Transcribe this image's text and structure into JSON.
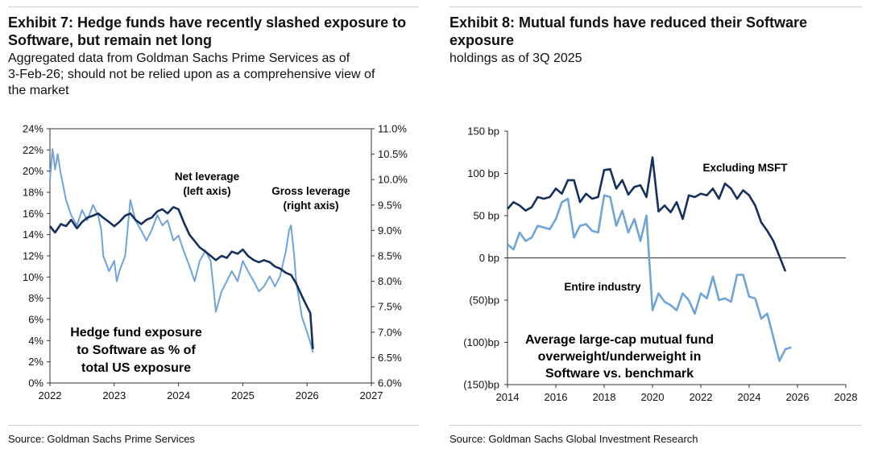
{
  "left": {
    "title_line1": "Exhibit 7: Hedge funds have recently slashed exposure to",
    "title_line2": "Software, but remain net long",
    "subtitle_line1": "Aggregated data from Goldman Sachs Prime Services as of",
    "subtitle_line2": "3-Feb-26; should not be relied upon as a comprehensive view of",
    "subtitle_line3": "the market",
    "source": "Source: Goldman Sachs Prime Services"
  },
  "right": {
    "title_line1": "Exhibit 8: Mutual funds have reduced their Software",
    "title_line2": "exposure",
    "subtitle": "holdings as of 3Q 2025",
    "source": "Source: Goldman Sachs Global Investment Research"
  },
  "colors": {
    "dark": "#14305c",
    "light": "#6fa4d8"
  },
  "chart_data": [
    {
      "type": "line",
      "title": "Hedge fund exposure to Software as % of total US exposure",
      "text_lines": [
        "Hedge fund exposure",
        "to Software as % of",
        "total US exposure"
      ],
      "xlim": [
        2022,
        2027
      ],
      "x_ticks": [
        2022,
        2023,
        2024,
        2025,
        2026,
        2027
      ],
      "x_tick_labels": [
        "2022",
        "2023",
        "2024",
        "2025",
        "2026",
        "2027"
      ],
      "left_axis": {
        "ylim": [
          0,
          24
        ],
        "ticks": [
          0,
          2,
          4,
          6,
          8,
          10,
          12,
          14,
          16,
          18,
          20,
          22,
          24
        ],
        "tick_labels": [
          "0%",
          "2%",
          "4%",
          "6%",
          "8%",
          "10%",
          "12%",
          "14%",
          "16%",
          "18%",
          "20%",
          "22%",
          "24%"
        ]
      },
      "right_axis": {
        "ylim": [
          6.0,
          11.0
        ],
        "ticks": [
          6.0,
          6.5,
          7.0,
          7.5,
          8.0,
          8.5,
          9.0,
          9.5,
          10.0,
          10.5,
          11.0
        ],
        "tick_labels": [
          "6.0%",
          "6.5%",
          "7.0%",
          "7.5%",
          "8.0%",
          "8.5%",
          "9.0%",
          "9.5%",
          "10.0%",
          "10.5%",
          "11.0%"
        ]
      },
      "series": [
        {
          "name": "Net leverage",
          "label_lines": [
            "Net leverage",
            "(left axis)"
          ],
          "axis": "left",
          "color": "#14305c",
          "x": [
            2022.0,
            2022.08,
            2022.17,
            2022.25,
            2022.33,
            2022.42,
            2022.5,
            2022.58,
            2022.67,
            2022.75,
            2022.83,
            2022.92,
            2023.0,
            2023.08,
            2023.17,
            2023.25,
            2023.33,
            2023.42,
            2023.5,
            2023.58,
            2023.67,
            2023.75,
            2023.83,
            2023.92,
            2024.0,
            2024.08,
            2024.17,
            2024.25,
            2024.33,
            2024.42,
            2024.5,
            2024.58,
            2024.67,
            2024.75,
            2024.83,
            2024.92,
            2025.0,
            2025.08,
            2025.17,
            2025.25,
            2025.33,
            2025.42,
            2025.5,
            2025.58,
            2025.67,
            2025.75,
            2025.83,
            2025.92,
            2026.0,
            2026.05,
            2026.09
          ],
          "values": [
            14.8,
            14.2,
            15.0,
            14.8,
            15.4,
            14.6,
            15.2,
            15.6,
            15.8,
            16.0,
            15.6,
            15.2,
            14.8,
            15.2,
            15.8,
            16.0,
            15.4,
            15.0,
            15.4,
            15.6,
            16.2,
            16.4,
            16.0,
            16.6,
            16.4,
            15.2,
            14.0,
            13.4,
            12.8,
            12.4,
            12.0,
            11.6,
            12.0,
            11.8,
            12.4,
            12.2,
            12.6,
            12.0,
            11.6,
            11.4,
            11.6,
            11.4,
            11.0,
            10.8,
            10.4,
            10.2,
            9.4,
            8.2,
            7.2,
            6.6,
            3.2
          ]
        },
        {
          "name": "Gross leverage",
          "label_lines": [
            "Gross leverage",
            "(right axis)"
          ],
          "axis": "right",
          "color": "#6fa4d8",
          "x": [
            2022.0,
            2022.04,
            2022.08,
            2022.12,
            2022.17,
            2022.25,
            2022.33,
            2022.42,
            2022.5,
            2022.58,
            2022.67,
            2022.75,
            2022.8,
            2022.83,
            2022.92,
            2023.0,
            2023.04,
            2023.08,
            2023.17,
            2023.25,
            2023.33,
            2023.42,
            2023.5,
            2023.58,
            2023.67,
            2023.75,
            2023.83,
            2023.92,
            2024.0,
            2024.08,
            2024.17,
            2024.25,
            2024.33,
            2024.42,
            2024.5,
            2024.55,
            2024.58,
            2024.67,
            2024.75,
            2024.83,
            2024.92,
            2025.0,
            2025.08,
            2025.17,
            2025.25,
            2025.33,
            2025.42,
            2025.5,
            2025.58,
            2025.67,
            2025.72,
            2025.75,
            2025.8,
            2025.83,
            2025.92,
            2026.0,
            2026.05,
            2026.09
          ],
          "values": [
            10.0,
            10.6,
            10.2,
            10.5,
            10.1,
            9.6,
            9.3,
            9.1,
            9.4,
            9.2,
            9.5,
            9.3,
            9.0,
            8.5,
            8.2,
            8.4,
            8.0,
            8.2,
            8.5,
            9.6,
            9.2,
            9.0,
            8.8,
            9.0,
            9.3,
            9.1,
            9.2,
            8.8,
            8.9,
            8.6,
            8.3,
            8.0,
            8.4,
            8.6,
            8.4,
            7.8,
            7.4,
            7.8,
            8.0,
            8.2,
            8.0,
            8.4,
            8.2,
            8.0,
            7.8,
            7.9,
            8.1,
            7.9,
            8.1,
            8.6,
            9.0,
            9.1,
            8.5,
            8.0,
            7.3,
            7.0,
            6.8,
            6.6
          ]
        }
      ]
    },
    {
      "type": "line",
      "title": "Average large-cap mutual fund overweight/underweight in Software vs. benchmark",
      "text_lines": [
        "Average large-cap mutual fund",
        "overweight/underweight in",
        "Software vs. benchmark"
      ],
      "xlim": [
        2014,
        2028
      ],
      "x_ticks": [
        2014,
        2016,
        2018,
        2020,
        2022,
        2024,
        2026,
        2028
      ],
      "x_tick_labels": [
        "2014",
        "2016",
        "2018",
        "2020",
        "2022",
        "2024",
        "2026",
        "2028"
      ],
      "ylim": [
        -150,
        150
      ],
      "y_ticks": [
        150,
        100,
        50,
        0,
        -50,
        -100,
        -150
      ],
      "y_tick_labels": [
        "150 bp",
        "100 bp",
        "50 bp",
        "0 bp",
        "(50)bp",
        "(100)bp",
        "(150)bp"
      ],
      "series": [
        {
          "name": "Excluding MSFT",
          "color": "#14305c",
          "x": [
            2014.0,
            2014.25,
            2014.5,
            2014.75,
            2015.0,
            2015.25,
            2015.5,
            2015.75,
            2016.0,
            2016.25,
            2016.5,
            2016.75,
            2017.0,
            2017.25,
            2017.5,
            2017.75,
            2018.0,
            2018.25,
            2018.5,
            2018.75,
            2019.0,
            2019.25,
            2019.5,
            2019.75,
            2020.0,
            2020.25,
            2020.5,
            2020.75,
            2021.0,
            2021.25,
            2021.5,
            2021.75,
            2022.0,
            2022.25,
            2022.5,
            2022.75,
            2023.0,
            2023.25,
            2023.5,
            2023.75,
            2024.0,
            2024.25,
            2024.5,
            2024.75,
            2025.0,
            2025.25,
            2025.5
          ],
          "values": [
            58,
            66,
            62,
            56,
            60,
            72,
            70,
            72,
            82,
            76,
            92,
            92,
            66,
            76,
            70,
            72,
            104,
            105,
            82,
            92,
            75,
            84,
            86,
            72,
            119,
            55,
            62,
            54,
            66,
            46,
            74,
            72,
            76,
            74,
            82,
            70,
            88,
            82,
            70,
            80,
            74,
            62,
            42,
            32,
            20,
            2,
            -16
          ]
        },
        {
          "name": "Entire industry",
          "color": "#6fa4d8",
          "x": [
            2014.0,
            2014.25,
            2014.5,
            2014.75,
            2015.0,
            2015.25,
            2015.5,
            2015.75,
            2016.0,
            2016.25,
            2016.5,
            2016.75,
            2017.0,
            2017.25,
            2017.5,
            2017.75,
            2018.0,
            2018.25,
            2018.5,
            2018.75,
            2019.0,
            2019.25,
            2019.5,
            2019.75,
            2020.0,
            2020.25,
            2020.5,
            2020.75,
            2021.0,
            2021.25,
            2021.5,
            2021.75,
            2022.0,
            2022.25,
            2022.5,
            2022.75,
            2023.0,
            2023.25,
            2023.5,
            2023.75,
            2024.0,
            2024.25,
            2024.5,
            2024.75,
            2025.0,
            2025.25,
            2025.5,
            2025.75
          ],
          "values": [
            16,
            10,
            30,
            20,
            24,
            38,
            36,
            34,
            46,
            66,
            70,
            24,
            38,
            40,
            32,
            30,
            74,
            72,
            38,
            56,
            30,
            46,
            20,
            50,
            -62,
            -42,
            -52,
            -56,
            -62,
            -42,
            -50,
            -66,
            -42,
            -48,
            -22,
            -50,
            -48,
            -52,
            -20,
            -20,
            -46,
            -48,
            -72,
            -66,
            -94,
            -122,
            -108,
            -106
          ]
        }
      ]
    }
  ]
}
